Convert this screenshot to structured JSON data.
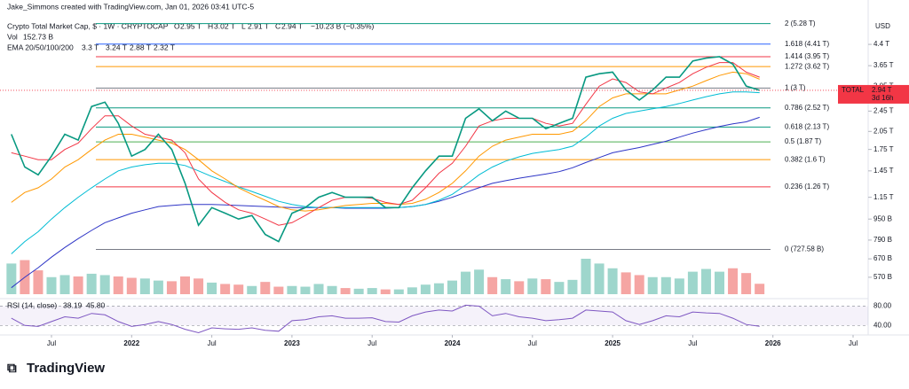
{
  "chart_data": {
    "type": "line",
    "caption": "Jake_Simmons created with TradingView.com, Jan 01, 2026 03:41 UTC-5",
    "title": "Crypto Total Market Cap, $ · 1W · CRYPTOCAP",
    "ohlc": [
      {
        "key": "O",
        "text": "2.95 T"
      },
      {
        "key": "H",
        "text": "3.02 T"
      },
      {
        "key": "L",
        "text": "2.91 T"
      },
      {
        "key": "C",
        "text": "2.94 T"
      }
    ],
    "change": "−10.23 B (−0.35%)",
    "ema_label": "EMA 20/50/100/200",
    "axis_unit": "USD",
    "log_scale": true,
    "x": [
      "2021-04",
      "2021-05",
      "2021-06",
      "2021-07",
      "2021-08",
      "2021-09",
      "2021-10",
      "2021-11",
      "2021-12",
      "2022-01",
      "2022-02",
      "2022-03",
      "2022-04",
      "2022-05",
      "2022-06",
      "2022-07",
      "2022-08",
      "2022-09",
      "2022-10",
      "2022-11",
      "2022-12",
      "2023-01",
      "2023-02",
      "2023-03",
      "2023-04",
      "2023-05",
      "2023-06",
      "2023-07",
      "2023-08",
      "2023-09",
      "2023-10",
      "2023-11",
      "2023-12",
      "2024-01",
      "2024-02",
      "2024-03",
      "2024-04",
      "2024-05",
      "2024-06",
      "2024-07",
      "2024-08",
      "2024-09",
      "2024-10",
      "2024-11",
      "2024-12",
      "2025-01",
      "2025-02",
      "2025-03",
      "2025-04",
      "2025-05",
      "2025-06",
      "2025-07",
      "2025-08",
      "2025-09",
      "2025-10",
      "2025-11",
      "2025-12"
    ],
    "xticks": [
      {
        "value": "2021-07",
        "label": "Jul"
      },
      {
        "value": "2022-01",
        "label": "2022"
      },
      {
        "value": "2022-07",
        "label": "Jul"
      },
      {
        "value": "2023-01",
        "label": "2023"
      },
      {
        "value": "2023-07",
        "label": "Jul"
      },
      {
        "value": "2024-01",
        "label": "2024"
      },
      {
        "value": "2024-07",
        "label": "Jul"
      },
      {
        "value": "2025-01",
        "label": "2025"
      },
      {
        "value": "2025-07",
        "label": "Jul"
      },
      {
        "value": "2026-01",
        "label": "2026"
      },
      {
        "value": "2026-07",
        "label": "Jul"
      }
    ],
    "ylim": [
      480,
      5560
    ],
    "yticks": [
      {
        "value": 570,
        "label": "570 B"
      },
      {
        "value": 670,
        "label": "670 B"
      },
      {
        "value": 790,
        "label": "790 B"
      },
      {
        "value": 950,
        "label": "950 B"
      },
      {
        "value": 1150,
        "label": "1.15 T"
      },
      {
        "value": 1450,
        "label": "1.45 T"
      },
      {
        "value": 1750,
        "label": "1.75 T"
      },
      {
        "value": 2050,
        "label": "2.05 T"
      },
      {
        "value": 2450,
        "label": "2.45 T"
      },
      {
        "value": 3050,
        "label": "3.05 T"
      },
      {
        "value": 3650,
        "label": "3.65 T"
      },
      {
        "value": 4400,
        "label": "4.4 T"
      }
    ],
    "series": [
      {
        "name": "TOTAL",
        "color": "#089981",
        "values": [
          2000,
          1500,
          1400,
          1650,
          2000,
          1900,
          2550,
          2650,
          2200,
          1650,
          1750,
          2000,
          1750,
          1300,
          900,
          1050,
          1000,
          950,
          980,
          830,
          780,
          1000,
          1050,
          1150,
          1200,
          1150,
          1150,
          1150,
          1050,
          1050,
          1250,
          1450,
          1650,
          1650,
          2300,
          2500,
          2250,
          2450,
          2300,
          2300,
          2100,
          2200,
          2300,
          3300,
          3400,
          3450,
          2950,
          2700,
          2950,
          3300,
          3300,
          3800,
          3900,
          3950,
          3700,
          3050,
          2940
        ]
      },
      {
        "color": "#f23645",
        "legend_value": "3.3 T",
        "values": [
          1700,
          1650,
          1600,
          1600,
          1750,
          1850,
          2100,
          2350,
          2350,
          2150,
          2000,
          1950,
          1900,
          1700,
          1350,
          1200,
          1100,
          1030,
          1000,
          950,
          900,
          920,
          980,
          1050,
          1120,
          1150,
          1150,
          1140,
          1100,
          1080,
          1120,
          1250,
          1420,
          1550,
          1800,
          2150,
          2250,
          2300,
          2300,
          2300,
          2200,
          2150,
          2200,
          2600,
          3050,
          3250,
          3150,
          2900,
          2850,
          3000,
          3150,
          3400,
          3600,
          3750,
          3750,
          3450,
          3300
        ]
      },
      {
        "color": "#ff9800",
        "legend_value": "3.24 T",
        "values": [
          1100,
          1200,
          1250,
          1350,
          1500,
          1600,
          1750,
          1900,
          2000,
          2000,
          1950,
          1900,
          1850,
          1750,
          1600,
          1450,
          1350,
          1250,
          1180,
          1120,
          1060,
          1030,
          1020,
          1030,
          1050,
          1070,
          1080,
          1090,
          1090,
          1080,
          1090,
          1130,
          1200,
          1300,
          1450,
          1650,
          1800,
          1900,
          1950,
          2000,
          2000,
          2000,
          2050,
          2250,
          2550,
          2750,
          2850,
          2850,
          2850,
          2850,
          2950,
          3050,
          3200,
          3350,
          3450,
          3400,
          3240
        ]
      },
      {
        "color": "#00bcd4",
        "legend_value": "2.88 T",
        "values": [
          700,
          780,
          850,
          950,
          1050,
          1150,
          1250,
          1350,
          1450,
          1500,
          1530,
          1550,
          1550,
          1520,
          1450,
          1380,
          1320,
          1260,
          1210,
          1160,
          1110,
          1080,
          1060,
          1050,
          1050,
          1050,
          1050,
          1050,
          1050,
          1050,
          1060,
          1080,
          1120,
          1180,
          1280,
          1400,
          1500,
          1580,
          1640,
          1690,
          1720,
          1750,
          1800,
          1950,
          2150,
          2300,
          2400,
          2450,
          2500,
          2550,
          2620,
          2700,
          2780,
          2850,
          2900,
          2900,
          2880
        ]
      },
      {
        "color": "#2e35c6",
        "legend_value": "2.32 T",
        "values": [
          520,
          570,
          620,
          680,
          740,
          800,
          860,
          920,
          960,
          1000,
          1030,
          1060,
          1070,
          1080,
          1080,
          1080,
          1075,
          1070,
          1065,
          1060,
          1055,
          1050,
          1050,
          1050,
          1050,
          1045,
          1045,
          1045,
          1045,
          1050,
          1060,
          1080,
          1110,
          1150,
          1200,
          1250,
          1300,
          1330,
          1360,
          1385,
          1410,
          1440,
          1490,
          1560,
          1630,
          1700,
          1740,
          1780,
          1830,
          1880,
          1950,
          2020,
          2080,
          2140,
          2190,
          2230,
          2320
        ]
      }
    ],
    "price_tag": {
      "value": 2940,
      "label": "2.94 T",
      "countdown": "3d 16h",
      "color": "#f23645"
    },
    "fib_levels": [
      {
        "label": "2 (5.28 T)",
        "value": 5280,
        "color": "#089981"
      },
      {
        "label": "1.618 (4.41 T)",
        "value": 4410,
        "color": "#2962ff"
      },
      {
        "label": "1.414 (3.95 T)",
        "value": 3950,
        "color": "#f23645"
      },
      {
        "label": "1.272 (3.62 T)",
        "value": 3620,
        "color": "#ff9800"
      },
      {
        "label": "1 (3 T)",
        "value": 3000,
        "color": "#787b86"
      },
      {
        "label": "0.786 (2.52 T)",
        "value": 2520,
        "color": "#089981"
      },
      {
        "label": "0.618 (2.13 T)",
        "value": 2130,
        "color": "#089981"
      },
      {
        "label": "0.5 (1.87 T)",
        "value": 1870,
        "color": "#4caf50"
      },
      {
        "label": "0.382 (1.6 T)",
        "value": 1600,
        "color": "#ff9800"
      },
      {
        "label": "0.236 (1.26 T)",
        "value": 1260,
        "color": "#f23645"
      },
      {
        "label": "0 (727.58 B)",
        "value": 727.58,
        "color": "#787b86"
      }
    ],
    "volume": {
      "label": "Vol",
      "value_label": "152.73 B",
      "vlim": [
        0,
        1300
      ],
      "values": [
        450,
        500,
        350,
        250,
        280,
        260,
        300,
        280,
        260,
        240,
        230,
        200,
        190,
        260,
        230,
        170,
        150,
        140,
        120,
        180,
        110,
        120,
        110,
        150,
        120,
        90,
        80,
        90,
        70,
        70,
        100,
        140,
        160,
        200,
        330,
        360,
        250,
        220,
        190,
        230,
        220,
        180,
        210,
        520,
        450,
        380,
        320,
        280,
        250,
        250,
        230,
        330,
        370,
        330,
        380,
        310,
        152.73
      ]
    },
    "rsi": {
      "label": "RSI (14, close)",
      "value_label": "38.19",
      "ma_label": "45.80",
      "color": "#7e57c2",
      "ma_color": "#f5c542",
      "ylim": [
        24,
        92
      ],
      "yticks": [
        {
          "value": 80,
          "label": "80.00"
        },
        {
          "value": 40,
          "label": "40.00"
        }
      ],
      "values": [
        55,
        40,
        38,
        48,
        58,
        55,
        65,
        62,
        48,
        38,
        42,
        48,
        42,
        32,
        25,
        35,
        33,
        32,
        35,
        30,
        28,
        50,
        52,
        58,
        60,
        55,
        55,
        56,
        48,
        47,
        60,
        68,
        72,
        70,
        82,
        80,
        60,
        65,
        58,
        55,
        50,
        52,
        55,
        72,
        70,
        68,
        50,
        42,
        50,
        60,
        58,
        68,
        66,
        65,
        55,
        42,
        38.19
      ]
    },
    "footer": "TradingView"
  }
}
